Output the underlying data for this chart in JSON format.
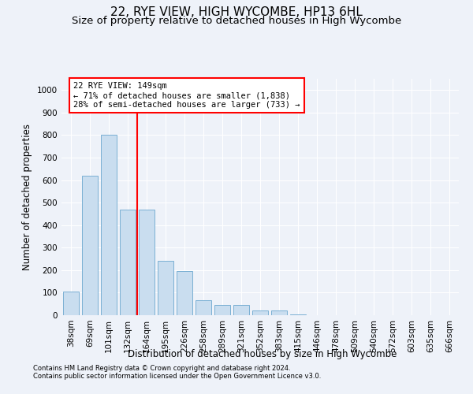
{
  "title1": "22, RYE VIEW, HIGH WYCOMBE, HP13 6HL",
  "title2": "Size of property relative to detached houses in High Wycombe",
  "xlabel": "Distribution of detached houses by size in High Wycombe",
  "ylabel": "Number of detached properties",
  "categories": [
    "38sqm",
    "69sqm",
    "101sqm",
    "132sqm",
    "164sqm",
    "195sqm",
    "226sqm",
    "258sqm",
    "289sqm",
    "321sqm",
    "352sqm",
    "383sqm",
    "415sqm",
    "446sqm",
    "478sqm",
    "509sqm",
    "540sqm",
    "572sqm",
    "603sqm",
    "635sqm",
    "666sqm"
  ],
  "values": [
    105,
    620,
    800,
    470,
    470,
    240,
    195,
    65,
    45,
    45,
    20,
    22,
    5,
    0,
    0,
    0,
    0,
    0,
    0,
    0,
    0
  ],
  "bar_color": "#c9ddef",
  "bar_edge_color": "#7ab0d4",
  "red_line_x": 3.5,
  "annotation_text": "22 RYE VIEW: 149sqm\n← 71% of detached houses are smaller (1,838)\n28% of semi-detached houses are larger (733) →",
  "annotation_box_facecolor": "white",
  "annotation_box_edgecolor": "red",
  "ylim": [
    0,
    1050
  ],
  "yticks": [
    0,
    100,
    200,
    300,
    400,
    500,
    600,
    700,
    800,
    900,
    1000
  ],
  "footnote1": "Contains HM Land Registry data © Crown copyright and database right 2024.",
  "footnote2": "Contains public sector information licensed under the Open Government Licence v3.0.",
  "background_color": "#eef2f9",
  "grid_color": "white",
  "title1_fontsize": 11,
  "title2_fontsize": 9.5,
  "axis_label_fontsize": 8.5,
  "tick_fontsize": 7.5,
  "footnote_fontsize": 6.0
}
